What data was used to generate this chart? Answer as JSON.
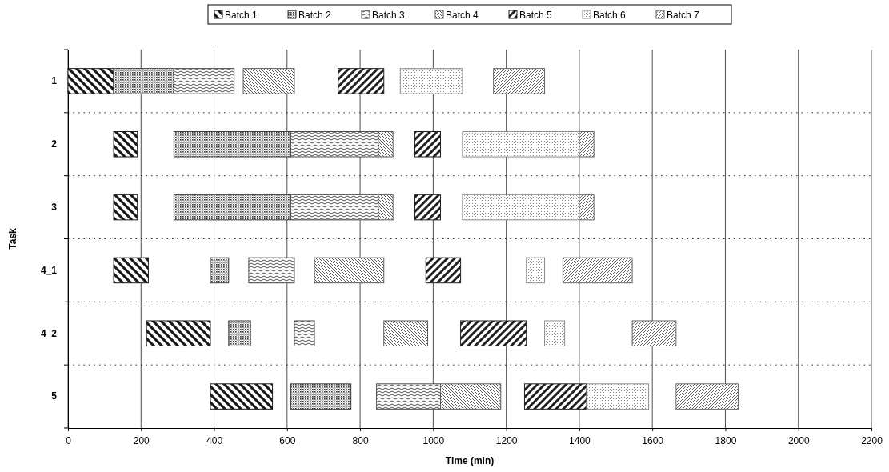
{
  "chart_data": {
    "type": "bar",
    "orientation": "horizontal",
    "xlabel": "Time (min)",
    "ylabel": "Task",
    "categories": [
      "1",
      "2",
      "3",
      "4_1",
      "4_2",
      "5"
    ],
    "xlim": [
      0,
      2200
    ],
    "xticks": [
      0,
      200,
      400,
      600,
      800,
      1000,
      1200,
      1400,
      1600,
      1800,
      2000,
      2200
    ],
    "grid": true,
    "legend": "top",
    "series": [
      {
        "name": "Batch 1",
        "color": "#1a1a1a",
        "base": [
          0,
          125,
          125,
          125,
          215,
          390
        ],
        "values": [
          125,
          65,
          65,
          95,
          175,
          170
        ]
      },
      {
        "name": "Batch 2",
        "color": "#3c3c3c",
        "base": [
          125,
          290,
          290,
          390,
          440,
          610
        ],
        "values": [
          165,
          320,
          320,
          50,
          60,
          165
        ]
      },
      {
        "name": "Batch 3",
        "color": "#4a4a4a",
        "base": [
          290,
          610,
          610,
          495,
          620,
          845
        ],
        "values": [
          165,
          240,
          240,
          125,
          55,
          175
        ]
      },
      {
        "name": "Batch 4",
        "color": "#5a5a5a",
        "base": [
          480,
          850,
          850,
          675,
          865,
          1020
        ],
        "values": [
          140,
          40,
          40,
          190,
          120,
          165
        ]
      },
      {
        "name": "Batch 5",
        "color": "#202020",
        "base": [
          740,
          950,
          950,
          980,
          1075,
          1250
        ],
        "values": [
          125,
          70,
          70,
          95,
          180,
          170
        ]
      },
      {
        "name": "Batch 6",
        "color": "#8c8c8c",
        "base": [
          910,
          1080,
          1080,
          1255,
          1305,
          1420
        ],
        "values": [
          170,
          320,
          320,
          50,
          55,
          170
        ]
      },
      {
        "name": "Batch 7",
        "color": "#666666",
        "base": [
          1165,
          1400,
          1400,
          1355,
          1545,
          1665
        ],
        "values": [
          140,
          40,
          40,
          190,
          120,
          170
        ]
      }
    ]
  }
}
